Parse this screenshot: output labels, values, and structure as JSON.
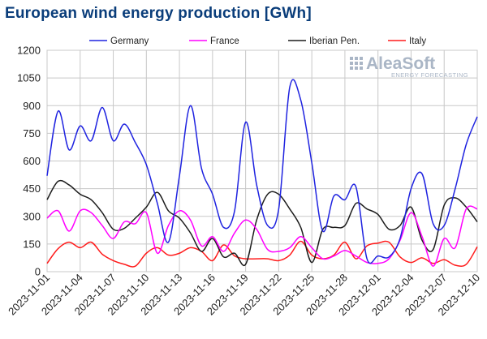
{
  "chart_data": {
    "type": "line",
    "title": "European wind energy production [GWh]",
    "xlabel": "",
    "ylabel": "",
    "ylim": [
      0,
      1200
    ],
    "yticks": [
      0,
      150,
      300,
      450,
      600,
      750,
      900,
      1050,
      1200
    ],
    "grid": true,
    "legend_position": "top",
    "x": [
      "2023-11-01",
      "2023-11-02",
      "2023-11-03",
      "2023-11-04",
      "2023-11-05",
      "2023-11-06",
      "2023-11-07",
      "2023-11-08",
      "2023-11-09",
      "2023-11-10",
      "2023-11-11",
      "2023-11-12",
      "2023-11-13",
      "2023-11-14",
      "2023-11-15",
      "2023-11-16",
      "2023-11-17",
      "2023-11-18",
      "2023-11-19",
      "2023-11-20",
      "2023-11-21",
      "2023-11-22",
      "2023-11-23",
      "2023-11-24",
      "2023-11-25",
      "2023-11-26",
      "2023-11-27",
      "2023-11-28",
      "2023-11-29",
      "2023-11-30",
      "2023-12-01",
      "2023-12-02",
      "2023-12-03",
      "2023-12-04",
      "2023-12-05",
      "2023-12-06",
      "2023-12-07",
      "2023-12-08",
      "2023-12-09",
      "2023-12-10"
    ],
    "xtick_labels": [
      "2023-11-01",
      "2023-11-04",
      "2023-11-07",
      "2023-11-10",
      "2023-11-13",
      "2023-11-16",
      "2023-11-19",
      "2023-11-22",
      "2023-11-25",
      "2023-11-28",
      "2023-12-01",
      "2023-12-04",
      "2023-12-07",
      "2023-12-10"
    ],
    "series": [
      {
        "name": "Germany",
        "color": "#1f23e0",
        "values": [
          520,
          870,
          660,
          790,
          710,
          890,
          710,
          800,
          700,
          580,
          370,
          160,
          520,
          900,
          560,
          420,
          240,
          330,
          810,
          470,
          250,
          340,
          1000,
          930,
          590,
          220,
          410,
          390,
          460,
          70,
          85,
          80,
          180,
          450,
          530,
          260,
          250,
          450,
          690,
          840
        ]
      },
      {
        "name": "France",
        "color": "#ff00ff",
        "values": [
          290,
          330,
          220,
          330,
          320,
          250,
          180,
          270,
          260,
          320,
          100,
          250,
          330,
          280,
          140,
          190,
          110,
          210,
          280,
          230,
          120,
          110,
          130,
          190,
          130,
          70,
          85,
          115,
          85,
          50,
          45,
          70,
          170,
          320,
          190,
          30,
          180,
          130,
          340,
          340
        ]
      },
      {
        "name": "Iberian Pen.",
        "color": "#1c1c1c",
        "values": [
          390,
          490,
          470,
          420,
          390,
          320,
          230,
          235,
          290,
          350,
          430,
          330,
          290,
          210,
          110,
          180,
          80,
          100,
          40,
          280,
          420,
          420,
          340,
          240,
          50,
          230,
          240,
          250,
          370,
          340,
          310,
          230,
          250,
          350,
          170,
          120,
          360,
          400,
          350,
          270
        ]
      },
      {
        "name": "Italy",
        "color": "#ff1b1b",
        "values": [
          45,
          125,
          160,
          130,
          160,
          95,
          60,
          40,
          30,
          100,
          130,
          90,
          100,
          130,
          110,
          60,
          145,
          85,
          70,
          70,
          70,
          60,
          90,
          165,
          90,
          70,
          90,
          160,
          70,
          140,
          155,
          160,
          80,
          50,
          75,
          45,
          65,
          35,
          40,
          135
        ]
      }
    ]
  },
  "branding": {
    "name": "AleaSoft",
    "tagline": "ENERGY FORECASTING"
  },
  "colors": {
    "title": "#0a3d7a",
    "grid": "#c8c8c8",
    "brand": "#aab6c6"
  }
}
